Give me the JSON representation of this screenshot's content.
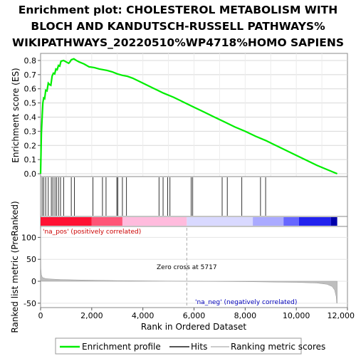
{
  "title_lines": [
    "Enrichment plot: CHOLESTEROL METABOLISM WITH",
    "BLOCH AND KANDUTSCH-RUSSELL PATHWAYS%",
    "WIKIPATHWAYS_20220510%WP4718%HOMO SAPIENS"
  ],
  "colors": {
    "curve": "#00ee00",
    "hits": "#000000",
    "metric": "#bebebe",
    "pos_label": "#cc0000",
    "neg_label": "#0000bb"
  },
  "chart_data": [
    {
      "type": "line",
      "name": "enrichment-score",
      "ylabel": "Enrichment score (ES)",
      "ylim": [
        -0.02,
        0.85
      ],
      "xlim": [
        0,
        12000
      ],
      "yticks": [
        0.0,
        0.1,
        0.2,
        0.3,
        0.4,
        0.5,
        0.6,
        0.7,
        0.8
      ],
      "ytick_labels": [
        "0.0",
        "0.1",
        "0.2",
        "0.3",
        "0.4",
        "0.5",
        "0.6",
        "0.7",
        "0.8"
      ],
      "grid": true,
      "x": [
        0,
        30,
        60,
        90,
        120,
        160,
        200,
        250,
        300,
        350,
        400,
        450,
        500,
        550,
        600,
        650,
        700,
        750,
        800,
        900,
        1000,
        1100,
        1150,
        1200,
        1300,
        1400,
        1500,
        1700,
        1900,
        2100,
        2300,
        2450,
        2600,
        2800,
        3000,
        3200,
        3400,
        3600,
        4000,
        4400,
        4800,
        5200,
        5600,
        6000,
        6400,
        6800,
        7200,
        7600,
        8000,
        8400,
        8800,
        9200,
        9600,
        10000,
        10400,
        10800,
        11200,
        11600
      ],
      "y": [
        0.0,
        0.28,
        0.4,
        0.5,
        0.535,
        0.53,
        0.59,
        0.585,
        0.64,
        0.63,
        0.625,
        0.69,
        0.71,
        0.705,
        0.74,
        0.735,
        0.765,
        0.76,
        0.795,
        0.8,
        0.79,
        0.78,
        0.79,
        0.805,
        0.812,
        0.8,
        0.79,
        0.775,
        0.755,
        0.75,
        0.74,
        0.735,
        0.73,
        0.72,
        0.705,
        0.695,
        0.688,
        0.675,
        0.64,
        0.605,
        0.57,
        0.54,
        0.505,
        0.47,
        0.435,
        0.4,
        0.365,
        0.33,
        0.3,
        0.265,
        0.235,
        0.2,
        0.165,
        0.13,
        0.095,
        0.06,
        0.03,
        0.0
      ]
    },
    {
      "type": "hits",
      "name": "hits",
      "x": [
        60,
        120,
        200,
        300,
        420,
        480,
        560,
        620,
        700,
        780,
        900,
        1200,
        1320,
        2050,
        2420,
        2560,
        2980,
        3020,
        3200,
        3360,
        4630,
        4790,
        4970,
        5060,
        5890,
        5950,
        7100,
        7300,
        7870,
        8600,
        8800
      ]
    },
    {
      "type": "heatmap",
      "name": "ranking-colorbar",
      "segments": [
        {
          "from": 0,
          "to": 2000,
          "color": "#ff1133"
        },
        {
          "from": 2000,
          "to": 3200,
          "color": "#ff5577"
        },
        {
          "from": 3200,
          "to": 5717,
          "color": "#ffbbdd"
        },
        {
          "from": 5717,
          "to": 8300,
          "color": "#d9d9ff"
        },
        {
          "from": 8300,
          "to": 9500,
          "color": "#aaaaff"
        },
        {
          "from": 9500,
          "to": 10100,
          "color": "#6666ff"
        },
        {
          "from": 10100,
          "to": 11350,
          "color": "#2222ee"
        },
        {
          "from": 11350,
          "to": 11600,
          "color": "#0000aa"
        }
      ]
    },
    {
      "type": "area",
      "name": "ranked-list-metric",
      "xlabel": "Rank in Ordered Dataset",
      "ylabel": "Ranked list metric (PreRanked)",
      "ylim": [
        -60,
        125
      ],
      "xlim": [
        0,
        12000
      ],
      "yticks": [
        -50,
        0,
        50,
        100
      ],
      "ytick_labels": [
        "-50",
        "0",
        "50",
        "100"
      ],
      "xticks": [
        0,
        2000,
        4000,
        6000,
        8000,
        10000,
        12000
      ],
      "xtick_labels": [
        "0",
        "2,000",
        "4,000",
        "6,000",
        "8,000",
        "10,000",
        "12,000"
      ],
      "x": [
        0,
        10,
        30,
        60,
        100,
        200,
        400,
        800,
        1500,
        3000,
        5717,
        8000,
        10000,
        10800,
        11200,
        11400,
        11500,
        11560,
        11580,
        11600
      ],
      "y": [
        120,
        30,
        15,
        10,
        8,
        6,
        5,
        4,
        3,
        1.5,
        0,
        -1,
        -2.5,
        -4,
        -7,
        -12,
        -20,
        -35,
        -50,
        -50
      ],
      "zero_cross": 5717,
      "zero_cross_label": "Zero cross at 5717",
      "pos_label": "'na_pos' (positively correlated)",
      "neg_label": "'na_neg' (negatively correlated)"
    }
  ],
  "legend": {
    "items": [
      {
        "label": "Enrichment profile",
        "style": "line",
        "color": "#00ee00"
      },
      {
        "label": "Hits",
        "style": "line",
        "color": "#555555"
      },
      {
        "label": "Ranking metric scores",
        "style": "line",
        "color": "#cccccc"
      }
    ]
  }
}
